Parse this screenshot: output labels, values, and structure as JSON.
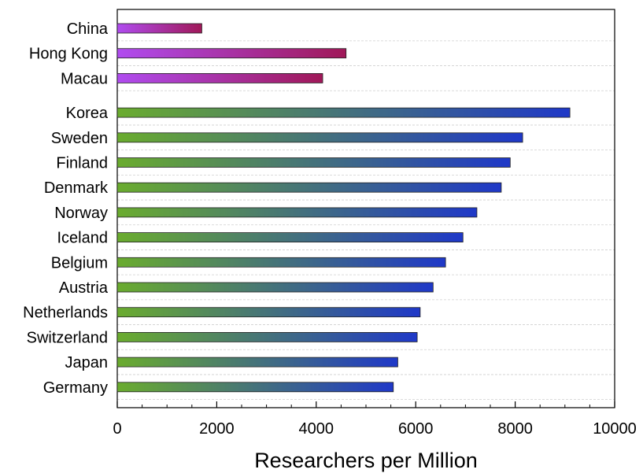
{
  "chart_data": {
    "type": "bar",
    "orientation": "horizontal",
    "xlabel": "Researchers per Million",
    "xlim": [
      0,
      10000
    ],
    "xticks": [
      "0",
      "2000",
      "4000",
      "6000",
      "8000",
      "10000"
    ],
    "grid": "horizontal dashed",
    "groups": [
      {
        "colors": [
          "#b04cf0",
          "#a01858"
        ],
        "bars": [
          {
            "label": "China",
            "value": 1700
          },
          {
            "label": "Hong Kong",
            "value": 4600
          },
          {
            "label": "Macau",
            "value": 4130
          }
        ]
      },
      {
        "colors": [
          "#6aac2e",
          "#1f38c8"
        ],
        "bars": [
          {
            "label": "Korea",
            "value": 9100
          },
          {
            "label": "Sweden",
            "value": 8150
          },
          {
            "label": "Finland",
            "value": 7900
          },
          {
            "label": "Denmark",
            "value": 7720
          },
          {
            "label": "Norway",
            "value": 7230
          },
          {
            "label": "Iceland",
            "value": 6950
          },
          {
            "label": "Belgium",
            "value": 6600
          },
          {
            "label": "Austria",
            "value": 6350
          },
          {
            "label": "Netherlands",
            "value": 6090
          },
          {
            "label": "Switzerland",
            "value": 6030
          },
          {
            "label": "Japan",
            "value": 5640
          },
          {
            "label": "Germany",
            "value": 5550
          }
        ]
      }
    ]
  }
}
